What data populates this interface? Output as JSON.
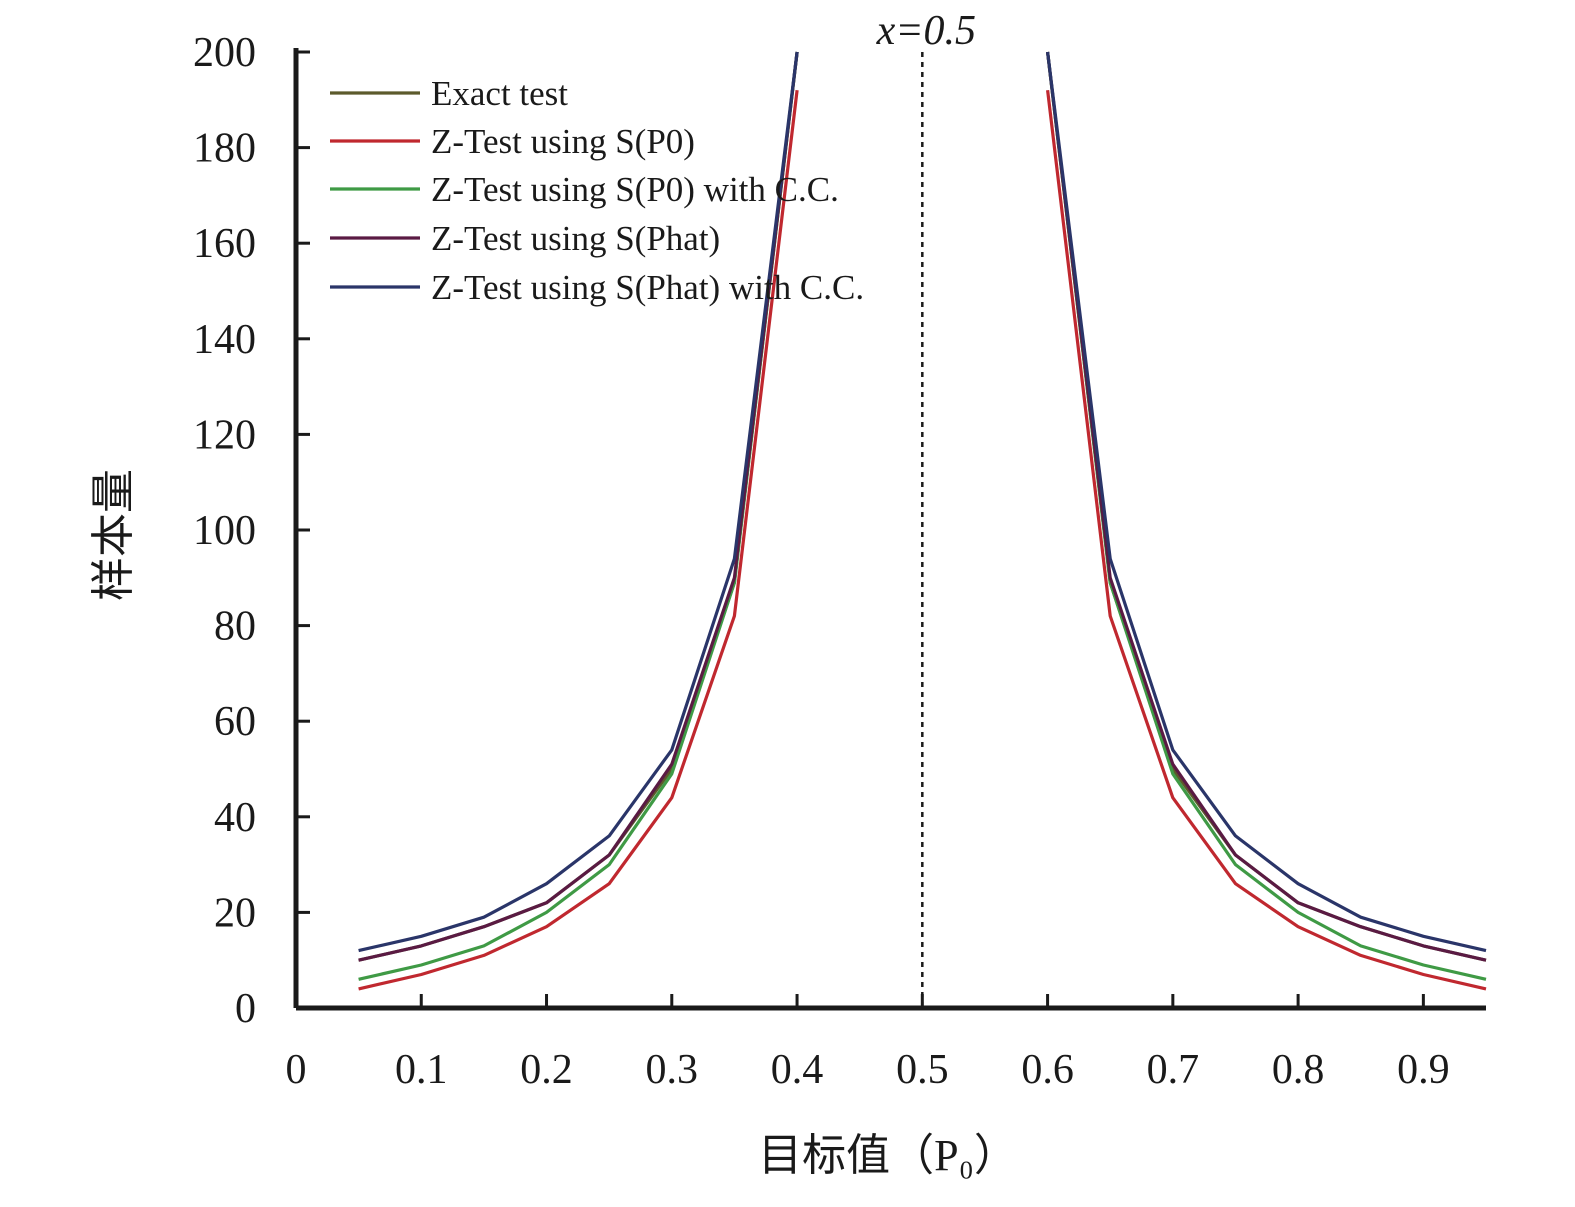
{
  "chart_data": {
    "type": "line",
    "title": "",
    "xlabel": "目标值（P₀）",
    "ylabel": "样本量",
    "xlim": [
      0,
      0.95
    ],
    "ylim": [
      0,
      200
    ],
    "xticks": [
      0,
      0.1,
      0.2,
      0.3,
      0.4,
      0.5,
      0.6,
      0.7,
      0.8,
      0.9
    ],
    "xtick_labels": [
      "0",
      "0.1",
      "0.2",
      "0.3",
      "0.4",
      "0.5",
      "0.6",
      "0.7",
      "0.8",
      "0.9"
    ],
    "yticks": [
      0,
      20,
      40,
      60,
      80,
      100,
      120,
      140,
      160,
      180,
      200
    ],
    "ytick_labels": [
      "0",
      "20",
      "40",
      "60",
      "80",
      "100",
      "120",
      "140",
      "160",
      "180",
      "200"
    ],
    "grid": false,
    "legend_position": "top-left",
    "reference_line": {
      "x": 0.5,
      "label": "x=0.5",
      "style": "dotted"
    },
    "x": [
      0.05,
      0.1,
      0.15,
      0.2,
      0.25,
      0.3,
      0.35,
      0.4,
      0.6,
      0.65,
      0.7,
      0.75,
      0.8,
      0.85,
      0.9,
      0.95
    ],
    "series": [
      {
        "name": "Exact test",
        "color": "#5c5a2c",
        "values": [
          10,
          13,
          17,
          22,
          32,
          50,
          89,
          200,
          200,
          89,
          50,
          32,
          22,
          17,
          13,
          10
        ]
      },
      {
        "name": "Z-Test using S(P0)",
        "color": "#c0282f",
        "values": [
          4,
          7,
          11,
          17,
          26,
          44,
          82,
          192,
          192,
          82,
          44,
          26,
          17,
          11,
          7,
          4
        ]
      },
      {
        "name": "Z-Test using S(P0) with C.C.",
        "color": "#3f9a45",
        "values": [
          6,
          9,
          13,
          20,
          30,
          49,
          89,
          201,
          201,
          89,
          49,
          30,
          20,
          13,
          9,
          6
        ]
      },
      {
        "name": "Z-Test using S(Phat)",
        "color": "#5a1a43",
        "values": [
          10,
          13,
          17,
          22,
          32,
          51,
          90,
          200,
          200,
          90,
          51,
          32,
          22,
          17,
          13,
          10
        ]
      },
      {
        "name": "Z-Test using S(Phat) with C.C.",
        "color": "#2a3569",
        "values": [
          12,
          15,
          19,
          26,
          36,
          54,
          94,
          201,
          201,
          94,
          54,
          36,
          26,
          19,
          15,
          12
        ]
      }
    ]
  }
}
